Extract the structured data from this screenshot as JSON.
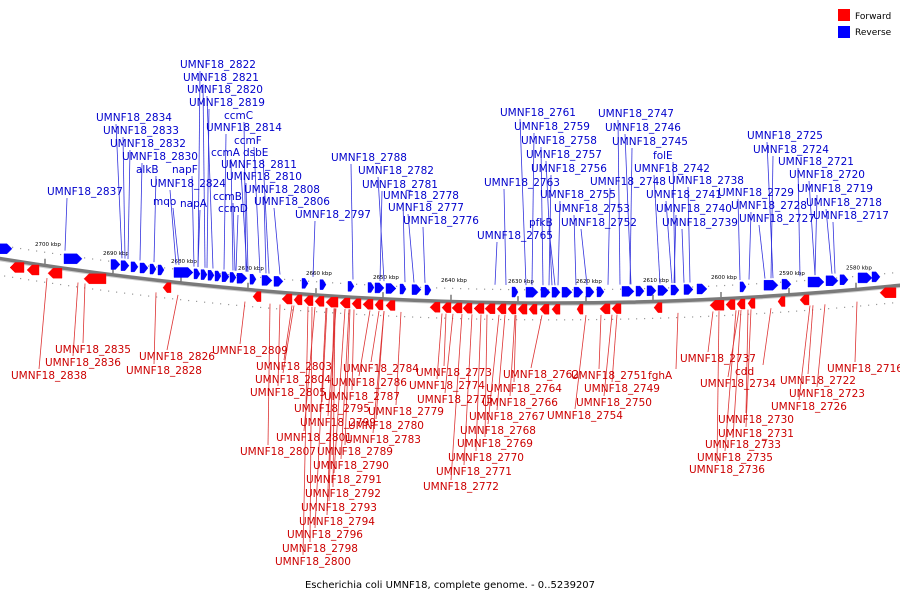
{
  "caption": "Escherichia coli UMNF18, complete genome. - 0..5239207",
  "legend": [
    {
      "label": "Forward",
      "color": "#ff0000"
    },
    {
      "label": "Reverse",
      "color": "#0000ff"
    }
  ],
  "colors": {
    "forward": "#ff0000",
    "reverse": "#0000ff",
    "forward_text": "#cc0000",
    "reverse_text": "#0000cc"
  },
  "ticks": [
    "2700 kbp",
    "2690 kbp",
    "2680 kbp",
    "2670 kbp",
    "2660 kbp",
    "2650 kbp",
    "2640 kbp",
    "2630 kbp",
    "2620 kbp",
    "2610 kbp",
    "2600 kbp",
    "2590 kbp",
    "2580 kbp"
  ],
  "reverse_labels": [
    "UMNF18_2822",
    "UMNF18_2821",
    "UMNF18_2820",
    "UMNF18_2819",
    "ccmC",
    "UMNF18_2834",
    "UMNF18_2814",
    "UMNF18_2833",
    "ccmF",
    "UMNF18_2832",
    "ccmA",
    "dsbE",
    "UMNF18_2830",
    "napF",
    "UMNF18_2811",
    "alkB",
    "UMNF18_2810",
    "UMNF18_2824",
    "UMNF18_2837",
    "UMNF18_2808",
    "mqo",
    "napA",
    "ccmB",
    "UMNF18_2806",
    "ccmD",
    "UMNF18_2788",
    "UMNF18_2782",
    "UMNF18_2781",
    "UMNF18_2778",
    "UMNF18_2777",
    "UMNF18_2797",
    "UMNF18_2776",
    "UMNF18_2761",
    "UMNF18_2759",
    "UMNF18_2758",
    "UMNF18_2757",
    "UMNF18_2756",
    "UMNF18_2763",
    "pfkB",
    "UMNF18_2755",
    "UMNF18_2753",
    "UMNF18_2752",
    "UMNF18_2765",
    "UMNF18_2747",
    "UMNF18_2746",
    "UMNF18_2745",
    "folE",
    "UMNF18_2742",
    "UMNF18_2748",
    "UMNF18_2738",
    "UMNF18_2741",
    "UMNF18_2740",
    "UMNF18_2739",
    "UMNF18_2725",
    "UMNF18_2724",
    "UMNF18_2721",
    "UMNF18_2720",
    "UMNF18_2719",
    "UMNF18_2729",
    "UMNF18_2718",
    "UMNF18_2728",
    "UMNF18_2717",
    "UMNF18_2727"
  ],
  "forward_labels": [
    "UMNF18_2835",
    "UMNF18_2836",
    "UMNF18_2838",
    "UMNF18_2826",
    "UMNF18_2828",
    "UMNF18_2809",
    "UMNF18_2803",
    "UMNF18_2804",
    "UMNF18_2805",
    "UMNF18_2795",
    "UMNF18_2799",
    "UMNF18_2801",
    "UMNF18_2807",
    "UMNF18_2789",
    "UMNF18_2790",
    "UMNF18_2791",
    "UMNF18_2792",
    "UMNF18_2793",
    "UMNF18_2794",
    "UMNF18_2796",
    "UMNF18_2798",
    "UMNF18_2800",
    "UMNF18_2784",
    "UMNF18_2786",
    "UMNF18_2787",
    "UMNF18_2779",
    "UMNF18_2780",
    "UMNF18_2783",
    "UMNF18_2773",
    "UMNF18_2774",
    "UMNF18_2775",
    "UMNF18_2762",
    "UMNF18_2764",
    "UMNF18_2766",
    "UMNF18_2767",
    "UMNF18_2768",
    "UMNF18_2769",
    "UMNF18_2770",
    "UMNF18_2771",
    "UMNF18_2772",
    "UMNF18_2751",
    "UMNF18_2749",
    "UMNF18_2750",
    "UMNF18_2754",
    "fghA",
    "UMNF18_2737",
    "cdd",
    "UMNF18_2734",
    "UMNF18_2730",
    "UMNF18_2731",
    "UMNF18_2733",
    "UMNF18_2735",
    "UMNF18_2736",
    "UMNF18_2722",
    "UMNF18_2723",
    "UMNF18_2726",
    "UMNF18_2716"
  ]
}
